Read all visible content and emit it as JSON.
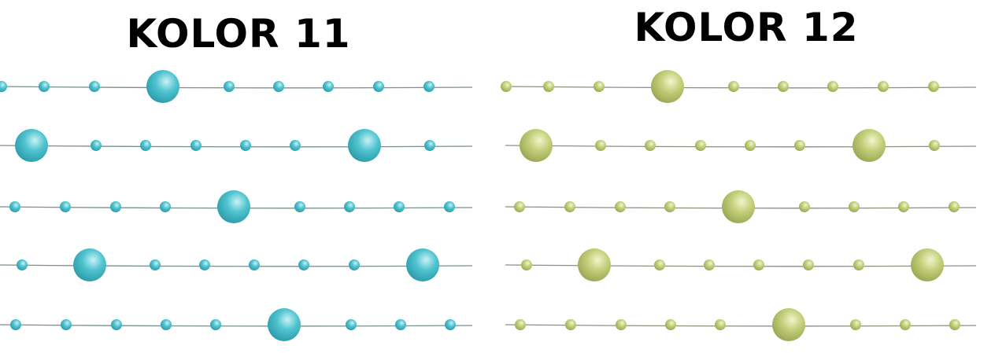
{
  "panels": [
    {
      "title": "KOLOR 11",
      "pearl_color": "#4fc3cf",
      "pearl_highlight": "#c8f2f5",
      "pearl_shade": "#2a9aa8",
      "wire_color": "#7a8f91"
    },
    {
      "title": "KOLOR 12",
      "pearl_color": "#c3cf7a",
      "pearl_highlight": "#f1f5cc",
      "pearl_shade": "#98a450",
      "wire_color": "#8a8f80"
    }
  ]
}
